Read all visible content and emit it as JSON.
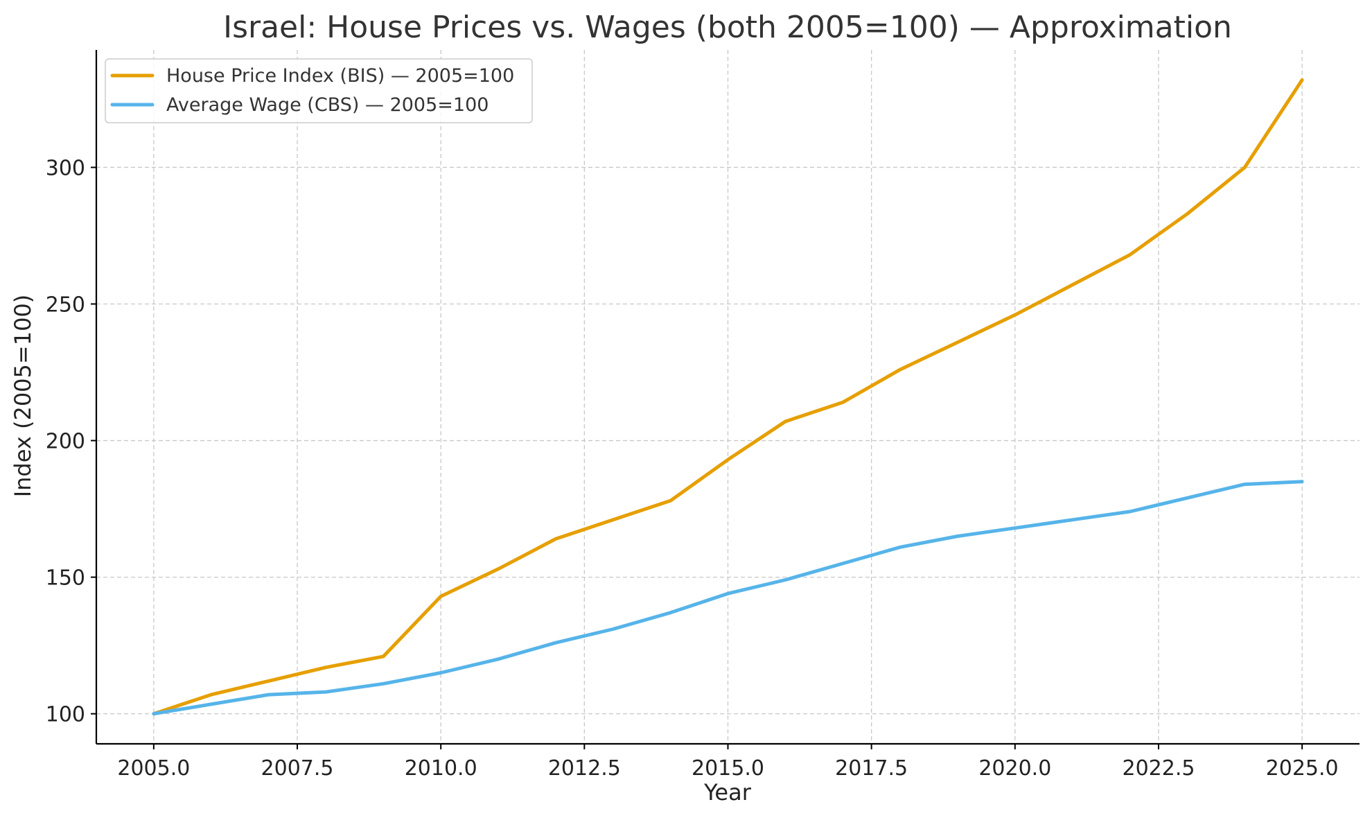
{
  "chart_data": {
    "type": "line",
    "title": "Israel: House Prices vs. Wages (both 2005=100) — Approximation",
    "xlabel": "Year",
    "ylabel": "Index (2005=100)",
    "xlim": [
      2004,
      2026.0
    ],
    "ylim": [
      89,
      343
    ],
    "xticks": [
      2005.0,
      2007.5,
      2010.0,
      2012.5,
      2015.0,
      2017.5,
      2020.0,
      2022.5,
      2025.0
    ],
    "xtick_labels": [
      "2005.0",
      "2007.5",
      "2010.0",
      "2012.5",
      "2015.0",
      "2017.5",
      "2020.0",
      "2022.5",
      "2025.0"
    ],
    "yticks": [
      100,
      150,
      200,
      250,
      300
    ],
    "ytick_labels": [
      "100",
      "150",
      "200",
      "250",
      "300"
    ],
    "grid": true,
    "legend_position": "top-left",
    "x": [
      2005,
      2006,
      2007,
      2008,
      2009,
      2010,
      2011,
      2012,
      2013,
      2014,
      2015,
      2016,
      2017,
      2018,
      2019,
      2020,
      2021,
      2022,
      2023,
      2024,
      2025
    ],
    "series": [
      {
        "name": "House Price Index (BIS) — 2005=100",
        "color": "#E69F00",
        "values": [
          100,
          107,
          112,
          117,
          121,
          143,
          153,
          164,
          171,
          178,
          193,
          207,
          214,
          226,
          236,
          246,
          257,
          268,
          283,
          300,
          332
        ]
      },
      {
        "name": "Average Wage (CBS) — 2005=100",
        "color": "#56B4E9",
        "values": [
          100,
          103.5,
          107,
          108,
          111,
          115,
          120,
          126,
          131,
          137,
          144,
          149,
          155,
          161,
          165,
          168,
          171,
          174,
          179,
          184,
          185
        ]
      }
    ]
  }
}
